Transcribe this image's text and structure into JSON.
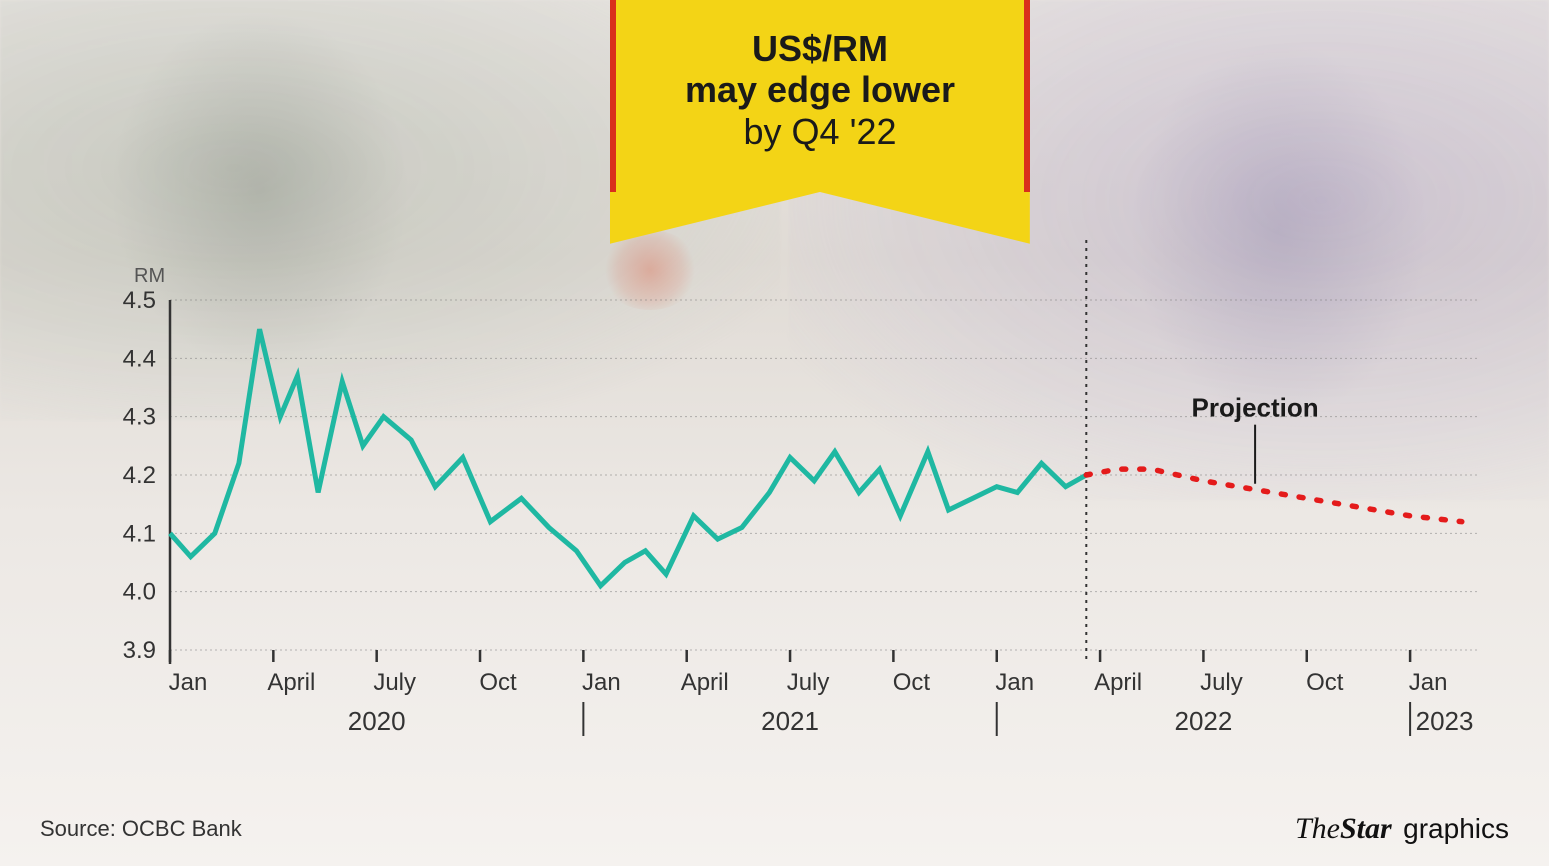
{
  "callout": {
    "line1": "US$/RM",
    "line2": "may edge lower",
    "line3": "by Q4 '22",
    "bg_color": "#f3d416",
    "edge_color": "#d92e1c",
    "bold_color": "#1a1a1a",
    "font_size_pt": 36
  },
  "chart": {
    "type": "line",
    "y_axis_title": "RM",
    "ylim": [
      3.9,
      4.5
    ],
    "ytick_step": 0.1,
    "yticks": [
      "3.9",
      "4.0",
      "4.1",
      "4.2",
      "4.3",
      "4.4",
      "4.5"
    ],
    "x_start_month_index": 0,
    "x_total_months": 38,
    "month_ticks": [
      {
        "idx": 0,
        "label": "Jan"
      },
      {
        "idx": 3,
        "label": "April"
      },
      {
        "idx": 6,
        "label": "July"
      },
      {
        "idx": 9,
        "label": "Oct"
      },
      {
        "idx": 12,
        "label": "Jan"
      },
      {
        "idx": 15,
        "label": "April"
      },
      {
        "idx": 18,
        "label": "July"
      },
      {
        "idx": 21,
        "label": "Oct"
      },
      {
        "idx": 24,
        "label": "Jan"
      },
      {
        "idx": 27,
        "label": "April"
      },
      {
        "idx": 30,
        "label": "July"
      },
      {
        "idx": 33,
        "label": "Oct"
      },
      {
        "idx": 36,
        "label": "Jan"
      }
    ],
    "year_labels": [
      {
        "idx": 6,
        "label": "2020"
      },
      {
        "idx": 18,
        "label": "2021"
      },
      {
        "idx": 30,
        "label": "2022"
      },
      {
        "idx": 37,
        "label": "2023"
      }
    ],
    "year_separators_idx": [
      12,
      24,
      36
    ],
    "historical": {
      "color": "#1fb8a2",
      "line_width": 5,
      "points": [
        [
          0.0,
          4.1
        ],
        [
          0.6,
          4.06
        ],
        [
          1.3,
          4.1
        ],
        [
          2.0,
          4.22
        ],
        [
          2.6,
          4.45
        ],
        [
          3.2,
          4.3
        ],
        [
          3.7,
          4.37
        ],
        [
          4.3,
          4.17
        ],
        [
          5.0,
          4.36
        ],
        [
          5.6,
          4.25
        ],
        [
          6.2,
          4.3
        ],
        [
          7.0,
          4.26
        ],
        [
          7.7,
          4.18
        ],
        [
          8.5,
          4.23
        ],
        [
          9.3,
          4.12
        ],
        [
          10.2,
          4.16
        ],
        [
          11.0,
          4.11
        ],
        [
          11.8,
          4.07
        ],
        [
          12.5,
          4.01
        ],
        [
          13.2,
          4.05
        ],
        [
          13.8,
          4.07
        ],
        [
          14.4,
          4.03
        ],
        [
          15.2,
          4.13
        ],
        [
          15.9,
          4.09
        ],
        [
          16.6,
          4.11
        ],
        [
          17.4,
          4.17
        ],
        [
          18.0,
          4.23
        ],
        [
          18.7,
          4.19
        ],
        [
          19.3,
          4.24
        ],
        [
          20.0,
          4.17
        ],
        [
          20.6,
          4.21
        ],
        [
          21.2,
          4.13
        ],
        [
          22.0,
          4.24
        ],
        [
          22.6,
          4.14
        ],
        [
          23.3,
          4.16
        ],
        [
          24.0,
          4.18
        ],
        [
          24.6,
          4.17
        ],
        [
          25.3,
          4.22
        ],
        [
          26.0,
          4.18
        ],
        [
          26.6,
          4.2
        ]
      ]
    },
    "projection": {
      "color": "#e41b1b",
      "line_width": 5.5,
      "dash": "4 14",
      "label": "Projection",
      "label_at_idx": 31.5,
      "points": [
        [
          26.6,
          4.2
        ],
        [
          27.5,
          4.21
        ],
        [
          28.5,
          4.21
        ],
        [
          30.0,
          4.19
        ],
        [
          32.0,
          4.17
        ],
        [
          34.0,
          4.15
        ],
        [
          36.0,
          4.13
        ],
        [
          37.5,
          4.12
        ]
      ]
    },
    "divider_idx": 26.6,
    "grid_color": "#777777",
    "axis_color": "#333333",
    "label_fontsize": 24,
    "year_fontsize": 26,
    "background_top": "#e8e4e0",
    "background_bottom": "#f5f2ef"
  },
  "source_label": "Source: OCBC Bank",
  "credit": {
    "the": "The",
    "star": "Star",
    "gfx": "graphics"
  }
}
